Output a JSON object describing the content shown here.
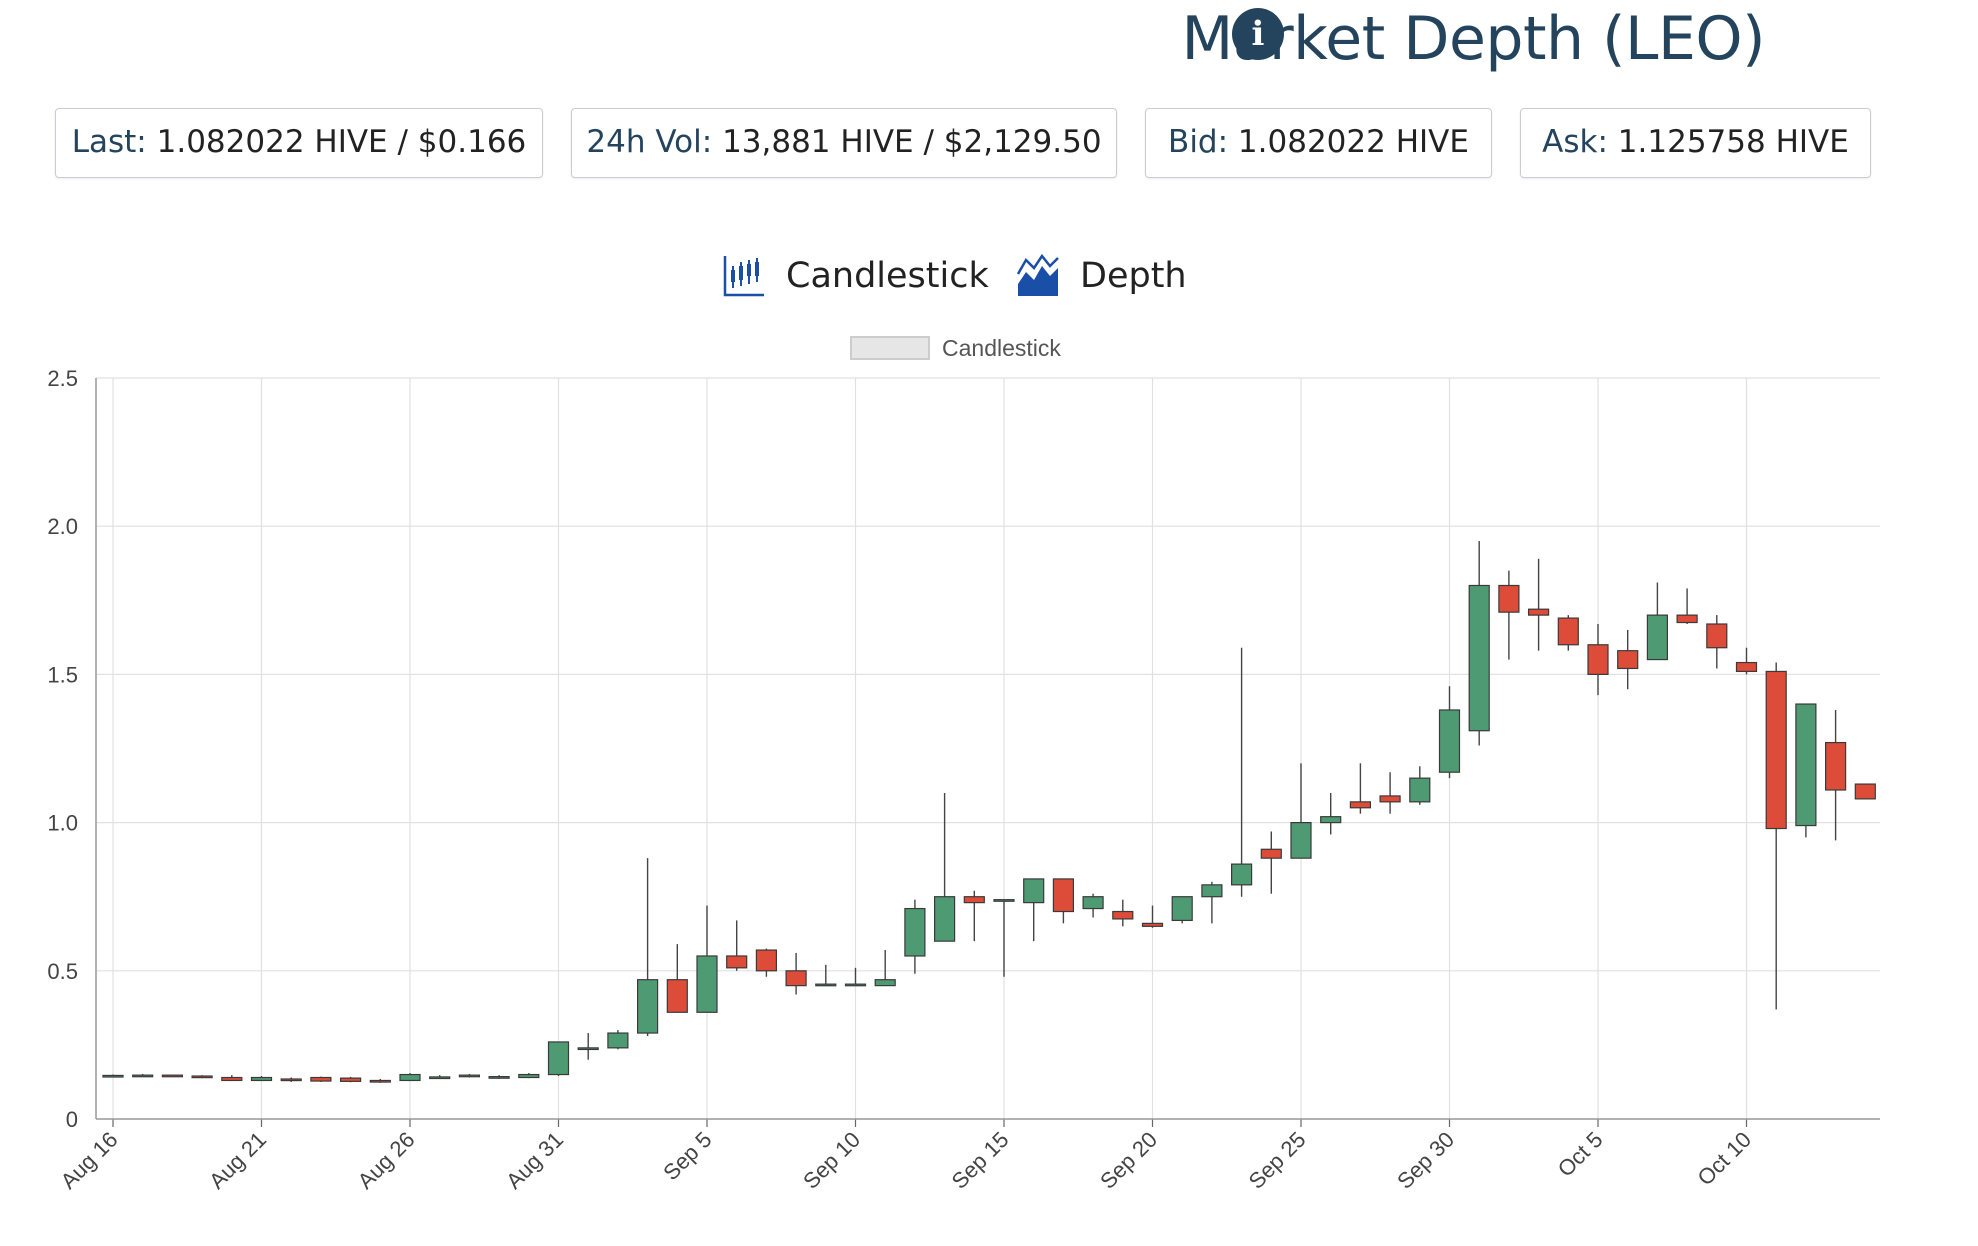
{
  "header": {
    "title": "Market Depth (LEO)",
    "info_icon": "info-circle-icon"
  },
  "stats": {
    "last_label": "Last:",
    "last_value": "1.082022 HIVE / $0.166",
    "vol_label": "24h Vol:",
    "vol_value": "13,881 HIVE / $2,129.50",
    "bid_label": "Bid:",
    "bid_value": "1.082022 HIVE",
    "ask_label": "Ask:",
    "ask_value": "1.125758 HIVE"
  },
  "tabs": [
    {
      "label": "Candlestick",
      "icon": "candlestick-chart-icon"
    },
    {
      "label": "Depth",
      "icon": "area-chart-icon"
    }
  ],
  "legend": {
    "label": "Candlestick"
  },
  "colors": {
    "up": "#4e9a72",
    "down": "#dd4b39",
    "accent": "#24445e",
    "grid": "#e1e1e1"
  },
  "chart_data": {
    "type": "candlestick",
    "legend": "Candlestick",
    "yticks": [
      0,
      0.5,
      1.0,
      1.5,
      2.0,
      2.5
    ],
    "ytick_labels": [
      "0",
      "0.5",
      "1.0",
      "1.5",
      "2.0",
      "2.5"
    ],
    "ylim": [
      0,
      2.5
    ],
    "xtick_labels": [
      "Aug 16",
      "Aug 21",
      "Aug 26",
      "Aug 31",
      "Sep 5",
      "Sep 10",
      "Sep 15",
      "Sep 20",
      "Sep 25",
      "Sep 30",
      "Oct 5",
      "Oct 10"
    ],
    "grid": true,
    "candles": [
      {
        "date": "Aug 16",
        "o": 0.145,
        "h": 0.15,
        "l": 0.14,
        "c": 0.147
      },
      {
        "date": "Aug 17",
        "o": 0.147,
        "h": 0.152,
        "l": 0.142,
        "c": 0.148
      },
      {
        "date": "Aug 18",
        "o": 0.148,
        "h": 0.15,
        "l": 0.142,
        "c": 0.145
      },
      {
        "date": "Aug 19",
        "o": 0.145,
        "h": 0.148,
        "l": 0.138,
        "c": 0.14
      },
      {
        "date": "Aug 20",
        "o": 0.14,
        "h": 0.148,
        "l": 0.128,
        "c": 0.13
      },
      {
        "date": "Aug 21",
        "o": 0.13,
        "h": 0.145,
        "l": 0.128,
        "c": 0.14
      },
      {
        "date": "Aug 22",
        "o": 0.135,
        "h": 0.14,
        "l": 0.125,
        "c": 0.13
      },
      {
        "date": "Aug 23",
        "o": 0.14,
        "h": 0.143,
        "l": 0.125,
        "c": 0.128
      },
      {
        "date": "Aug 24",
        "o": 0.138,
        "h": 0.142,
        "l": 0.124,
        "c": 0.127
      },
      {
        "date": "Aug 25",
        "o": 0.13,
        "h": 0.135,
        "l": 0.122,
        "c": 0.125
      },
      {
        "date": "Aug 26",
        "o": 0.13,
        "h": 0.155,
        "l": 0.128,
        "c": 0.15
      },
      {
        "date": "Aug 27",
        "o": 0.14,
        "h": 0.148,
        "l": 0.135,
        "c": 0.142
      },
      {
        "date": "Aug 28",
        "o": 0.145,
        "h": 0.152,
        "l": 0.14,
        "c": 0.148
      },
      {
        "date": "Aug 29",
        "o": 0.14,
        "h": 0.148,
        "l": 0.135,
        "c": 0.143
      },
      {
        "date": "Aug 30",
        "o": 0.14,
        "h": 0.155,
        "l": 0.138,
        "c": 0.15
      },
      {
        "date": "Aug 31",
        "o": 0.15,
        "h": 0.26,
        "l": 0.145,
        "c": 0.26
      },
      {
        "date": "Sep 1",
        "o": 0.24,
        "h": 0.29,
        "l": 0.2,
        "c": 0.24
      },
      {
        "date": "Sep 2",
        "o": 0.24,
        "h": 0.3,
        "l": 0.235,
        "c": 0.29
      },
      {
        "date": "Sep 3",
        "o": 0.29,
        "h": 0.88,
        "l": 0.28,
        "c": 0.47
      },
      {
        "date": "Sep 4",
        "o": 0.47,
        "h": 0.59,
        "l": 0.36,
        "c": 0.36
      },
      {
        "date": "Sep 5",
        "o": 0.36,
        "h": 0.72,
        "l": 0.36,
        "c": 0.55
      },
      {
        "date": "Sep 6",
        "o": 0.55,
        "h": 0.67,
        "l": 0.5,
        "c": 0.51
      },
      {
        "date": "Sep 7",
        "o": 0.57,
        "h": 0.575,
        "l": 0.48,
        "c": 0.5
      },
      {
        "date": "Sep 8",
        "o": 0.5,
        "h": 0.56,
        "l": 0.42,
        "c": 0.45
      },
      {
        "date": "Sep 9",
        "o": 0.45,
        "h": 0.52,
        "l": 0.45,
        "c": 0.455
      },
      {
        "date": "Sep 10",
        "o": 0.45,
        "h": 0.51,
        "l": 0.45,
        "c": 0.455
      },
      {
        "date": "Sep 11",
        "o": 0.45,
        "h": 0.57,
        "l": 0.45,
        "c": 0.47
      },
      {
        "date": "Sep 12",
        "o": 0.55,
        "h": 0.74,
        "l": 0.49,
        "c": 0.71
      },
      {
        "date": "Sep 13",
        "o": 0.6,
        "h": 1.1,
        "l": 0.6,
        "c": 0.75
      },
      {
        "date": "Sep 14",
        "o": 0.75,
        "h": 0.77,
        "l": 0.6,
        "c": 0.73
      },
      {
        "date": "Sep 15",
        "o": 0.735,
        "h": 0.74,
        "l": 0.48,
        "c": 0.74
      },
      {
        "date": "Sep 16",
        "o": 0.73,
        "h": 0.81,
        "l": 0.6,
        "c": 0.81
      },
      {
        "date": "Sep 17",
        "o": 0.81,
        "h": 0.81,
        "l": 0.66,
        "c": 0.7
      },
      {
        "date": "Sep 18",
        "o": 0.71,
        "h": 0.76,
        "l": 0.68,
        "c": 0.75
      },
      {
        "date": "Sep 19",
        "o": 0.7,
        "h": 0.74,
        "l": 0.65,
        "c": 0.675
      },
      {
        "date": "Sep 20",
        "o": 0.66,
        "h": 0.72,
        "l": 0.645,
        "c": 0.65
      },
      {
        "date": "Sep 21",
        "o": 0.67,
        "h": 0.75,
        "l": 0.66,
        "c": 0.75
      },
      {
        "date": "Sep 22",
        "o": 0.75,
        "h": 0.8,
        "l": 0.66,
        "c": 0.79
      },
      {
        "date": "Sep 23",
        "o": 0.79,
        "h": 1.59,
        "l": 0.75,
        "c": 0.86
      },
      {
        "date": "Sep 24",
        "o": 0.91,
        "h": 0.97,
        "l": 0.76,
        "c": 0.88
      },
      {
        "date": "Sep 25",
        "o": 0.88,
        "h": 1.2,
        "l": 0.88,
        "c": 1.0
      },
      {
        "date": "Sep 26",
        "o": 1.0,
        "h": 1.1,
        "l": 0.96,
        "c": 1.02
      },
      {
        "date": "Sep 27",
        "o": 1.07,
        "h": 1.2,
        "l": 1.03,
        "c": 1.05
      },
      {
        "date": "Sep 28",
        "o": 1.09,
        "h": 1.17,
        "l": 1.03,
        "c": 1.07
      },
      {
        "date": "Sep 29",
        "o": 1.07,
        "h": 1.19,
        "l": 1.06,
        "c": 1.15
      },
      {
        "date": "Sep 30",
        "o": 1.17,
        "h": 1.46,
        "l": 1.15,
        "c": 1.38
      },
      {
        "date": "Oct 1",
        "o": 1.31,
        "h": 1.95,
        "l": 1.26,
        "c": 1.8
      },
      {
        "date": "Oct 2",
        "o": 1.8,
        "h": 1.85,
        "l": 1.55,
        "c": 1.71
      },
      {
        "date": "Oct 3",
        "o": 1.72,
        "h": 1.89,
        "l": 1.58,
        "c": 1.7
      },
      {
        "date": "Oct 4",
        "o": 1.69,
        "h": 1.7,
        "l": 1.58,
        "c": 1.6
      },
      {
        "date": "Oct 5",
        "o": 1.6,
        "h": 1.67,
        "l": 1.43,
        "c": 1.5
      },
      {
        "date": "Oct 6",
        "o": 1.58,
        "h": 1.65,
        "l": 1.45,
        "c": 1.52
      },
      {
        "date": "Oct 7",
        "o": 1.55,
        "h": 1.81,
        "l": 1.55,
        "c": 1.7
      },
      {
        "date": "Oct 8",
        "o": 1.7,
        "h": 1.79,
        "l": 1.67,
        "c": 1.675
      },
      {
        "date": "Oct 9",
        "o": 1.67,
        "h": 1.7,
        "l": 1.52,
        "c": 1.59
      },
      {
        "date": "Oct 10",
        "o": 1.54,
        "h": 1.59,
        "l": 1.5,
        "c": 1.51
      },
      {
        "date": "Oct 11",
        "o": 1.51,
        "h": 1.54,
        "l": 0.37,
        "c": 0.98
      },
      {
        "date": "Oct 12",
        "o": 0.99,
        "h": 1.4,
        "l": 0.95,
        "c": 1.4
      },
      {
        "date": "Oct 13",
        "o": 1.27,
        "h": 1.38,
        "l": 0.94,
        "c": 1.11
      },
      {
        "date": "Oct 14",
        "o": 1.13,
        "h": 1.13,
        "l": 1.08,
        "c": 1.08
      }
    ]
  }
}
